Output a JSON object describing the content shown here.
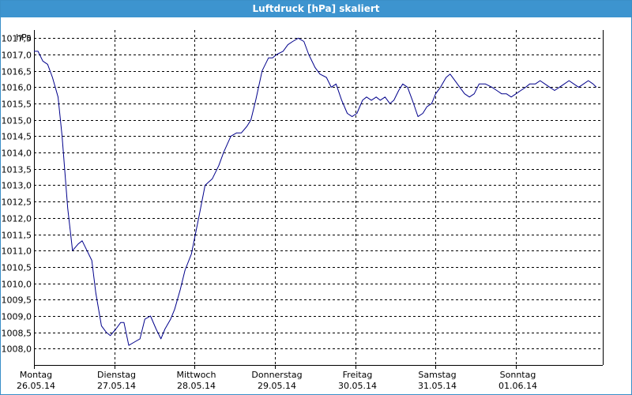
{
  "window": {
    "title": "Luftdruck [hPa] skaliert"
  },
  "colors": {
    "titlebar": "#3d94cf",
    "line": "#00008b",
    "grid": "#000000"
  },
  "chart_data": {
    "type": "line",
    "title": "Luftdruck [hPa] skaliert",
    "ylabel": "hPa",
    "xlabel": "",
    "grid": true,
    "ylim": [
      1007.5,
      1017.75
    ],
    "xlim": [
      0,
      7.08
    ],
    "yticks": [
      1008.0,
      1008.5,
      1009.0,
      1009.5,
      1010.0,
      1010.5,
      1011.0,
      1011.5,
      1012.0,
      1012.5,
      1013.0,
      1013.5,
      1014.0,
      1014.5,
      1015.0,
      1015.5,
      1016.0,
      1016.5,
      1017.0,
      1017.5
    ],
    "ytick_labels": [
      "1008,0",
      "1008,5",
      "1009,0",
      "1009,5",
      "1010,0",
      "1010,5",
      "1011,0",
      "1011,5",
      "1012,0",
      "1012,5",
      "1013,0",
      "1013,5",
      "1014,0",
      "1014,5",
      "1015,0",
      "1015,5",
      "1016,0",
      "1016,5",
      "1017,0",
      "1017,5"
    ],
    "xticks": [
      {
        "day": "Montag",
        "date": "26.05.14"
      },
      {
        "day": "Dienstag",
        "date": "27.05.14"
      },
      {
        "day": "Mittwoch",
        "date": "28.05.14"
      },
      {
        "day": "Donnerstag",
        "date": "29.05.14"
      },
      {
        "day": "Freitag",
        "date": "30.05.14"
      },
      {
        "day": "Samstag",
        "date": "31.05.14"
      },
      {
        "day": "Sonntag",
        "date": "01.06.14"
      }
    ],
    "series": [
      {
        "x": [
          0.0,
          0.05,
          0.11,
          0.17,
          0.23,
          0.3,
          0.35,
          0.42,
          0.48,
          0.55,
          0.6,
          0.66,
          0.72,
          0.77,
          0.84,
          0.9,
          0.95,
          1.02,
          1.08,
          1.12,
          1.18,
          1.25,
          1.32,
          1.38,
          1.45,
          1.52,
          1.58,
          1.63,
          1.7,
          1.75,
          1.82,
          1.88,
          1.96,
          2.05,
          2.13,
          2.22,
          2.3,
          2.36,
          2.45,
          2.52,
          2.58,
          2.65,
          2.7,
          2.76,
          2.84,
          2.92,
          2.97,
          3.02,
          3.1,
          3.16,
          3.22,
          3.29,
          3.36,
          3.42,
          3.5,
          3.56,
          3.64,
          3.7,
          3.76,
          3.83,
          3.9,
          3.96,
          4.02,
          4.09,
          4.14,
          4.2,
          4.26,
          4.31,
          4.37,
          4.43,
          4.48,
          4.54,
          4.59,
          4.65,
          4.71,
          4.78,
          4.84,
          4.89,
          4.95,
          5.0,
          5.06,
          5.13,
          5.18,
          5.24,
          5.3,
          5.36,
          5.42,
          5.48,
          5.54,
          5.62,
          5.7,
          5.76,
          5.82,
          5.88,
          5.94,
          6.0,
          6.06,
          6.12,
          6.17,
          6.24,
          6.3,
          6.36,
          6.42,
          6.48,
          6.54,
          6.6,
          6.66,
          6.72,
          6.78,
          6.84,
          6.9,
          6.96,
          7.0
        ],
        "values": [
          1017.1,
          1017.1,
          1016.8,
          1016.7,
          1016.3,
          1015.7,
          1014.5,
          1012.3,
          1011.0,
          1011.2,
          1011.3,
          1011.0,
          1010.7,
          1009.7,
          1008.7,
          1008.5,
          1008.4,
          1008.6,
          1008.8,
          1008.8,
          1008.1,
          1008.2,
          1008.3,
          1008.9,
          1009.0,
          1008.6,
          1008.3,
          1008.6,
          1008.9,
          1009.2,
          1009.8,
          1010.4,
          1010.9,
          1012.0,
          1013.0,
          1013.2,
          1013.6,
          1014.0,
          1014.5,
          1014.6,
          1014.6,
          1014.8,
          1015.0,
          1015.6,
          1016.5,
          1016.9,
          1016.9,
          1017.0,
          1017.1,
          1017.3,
          1017.4,
          1017.5,
          1017.4,
          1017.0,
          1016.6,
          1016.4,
          1016.3,
          1016.0,
          1016.1,
          1015.6,
          1015.2,
          1015.1,
          1015.2,
          1015.6,
          1015.7,
          1015.6,
          1015.7,
          1015.6,
          1015.7,
          1015.5,
          1015.6,
          1015.9,
          1016.1,
          1016.0,
          1015.6,
          1015.1,
          1015.2,
          1015.4,
          1015.5,
          1015.8,
          1016.0,
          1016.3,
          1016.4,
          1016.2,
          1016.0,
          1015.8,
          1015.7,
          1015.8,
          1016.1,
          1016.1,
          1016.0,
          1015.9,
          1015.8,
          1015.8,
          1015.7,
          1015.8,
          1015.9,
          1016.0,
          1016.1,
          1016.1,
          1016.2,
          1016.1,
          1016.0,
          1015.9,
          1016.0,
          1016.1,
          1016.2,
          1016.1,
          1016.0,
          1016.1,
          1016.2,
          1016.1,
          1016.0
        ]
      }
    ]
  }
}
